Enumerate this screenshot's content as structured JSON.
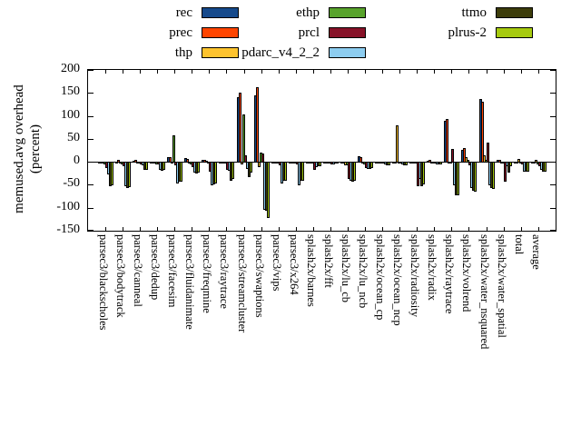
{
  "chart_data": {
    "type": "bar",
    "title": "",
    "ylabel_line1": "memused.avg overhead",
    "ylabel_line2": "(percent)",
    "ylim": [
      -150,
      200
    ],
    "yticks": [
      200,
      150,
      100,
      50,
      0,
      -50,
      -100,
      -150
    ],
    "grid": false,
    "legend_position": "top-center, 3 columns",
    "categories": [
      "parsec3/blackscholes",
      "parsec3/bodytrack",
      "parsec3/canneal",
      "parsec3/dedup",
      "parsec3/facesim",
      "parsec3/fluidanimate",
      "parsec3/freqmine",
      "parsec3/raytrace",
      "parsec3/streamcluster",
      "parsec3/swaptions",
      "parsec3/vips",
      "parsec3/x264",
      "splash2x/barnes",
      "splash2x/fft",
      "splash2x/lu_cb",
      "splash2x/lu_ncb",
      "splash2x/ocean_cp",
      "splash2x/ocean_ncp",
      "splash2x/radiosity",
      "splash2x/radix",
      "splash2x/raytrace",
      "splash2x/volrend",
      "splash2x/water_nsquared",
      "splash2x/water_spatial",
      "total",
      "average"
    ],
    "series": [
      {
        "name": "rec",
        "color": "#164a8c",
        "values": [
          -2,
          -2,
          2,
          -2,
          9,
          8,
          4,
          -2,
          141,
          144,
          -2,
          -2,
          -2,
          -1,
          -2,
          12,
          -1,
          -1,
          -1,
          2,
          88,
          25,
          137,
          3,
          -1,
          -2
        ]
      },
      {
        "name": "prec",
        "color": "#ff4500",
        "values": [
          -2,
          4,
          4,
          -2,
          9,
          5,
          4,
          -2,
          150,
          162,
          -2,
          -2,
          -2,
          -1,
          -2,
          9,
          -1,
          -1,
          -1,
          3,
          93,
          30,
          131,
          4,
          -1,
          -2
        ]
      },
      {
        "name": "thp",
        "color": "#fdc32e",
        "values": [
          -2,
          -2,
          -2,
          -2,
          -2,
          -2,
          2,
          -2,
          -3,
          -10,
          -2,
          -2,
          -2,
          -1,
          -6,
          -2,
          -1,
          80,
          -2,
          -1,
          -2,
          10,
          14,
          -2,
          5,
          4
        ]
      },
      {
        "name": "ethp",
        "color": "#58a32c",
        "values": [
          -3,
          -3,
          -2,
          -3,
          57,
          -3,
          -2,
          -2,
          103,
          20,
          -2,
          -2,
          -2,
          -1,
          -6,
          -3,
          -1,
          -1,
          -2,
          -1,
          -2,
          3,
          3,
          -2,
          -1,
          -3
        ]
      },
      {
        "name": "prcl",
        "color": "#871228",
        "values": [
          -12,
          -8,
          -3,
          -4,
          -5,
          -10,
          -19,
          -16,
          14,
          17,
          -5,
          -3,
          -16,
          -4,
          -36,
          -12,
          -2,
          -2,
          -52,
          -2,
          27,
          -5,
          42,
          -41,
          -3,
          -8
        ]
      },
      {
        "name": "pdarc_v4_2_2",
        "color": "#8dcdf0",
        "values": [
          -26,
          -52,
          -5,
          -15,
          -45,
          -22,
          -49,
          -18,
          -13,
          -102,
          -45,
          -49,
          -9,
          -3,
          -40,
          -13,
          -3,
          -3,
          -36,
          -3,
          -49,
          -55,
          -50,
          -8,
          -19,
          -16
        ]
      },
      {
        "name": "ttmo",
        "color": "#3d3d0b",
        "values": [
          -52,
          -56,
          -16,
          -17,
          -42,
          -23,
          -47,
          -39,
          -32,
          -105,
          -39,
          -40,
          -8,
          -2,
          -42,
          -14,
          -6,
          -5,
          -52,
          -3,
          -72,
          -62,
          -55,
          -22,
          -19,
          -19
        ]
      },
      {
        "name": "plrus-2",
        "color": "#a6ca0f",
        "values": [
          -50,
          -54,
          -16,
          -15,
          -42,
          -22,
          -45,
          -36,
          -22,
          -121,
          -39,
          -40,
          -8,
          -2,
          -40,
          -12,
          -6,
          -5,
          -47,
          -3,
          -72,
          -64,
          -58,
          -7,
          -19,
          -19
        ]
      }
    ],
    "legend_columns": [
      [
        "rec",
        "prec",
        "thp"
      ],
      [
        "ethp",
        "prcl",
        "pdarc_v4_2_2"
      ],
      [
        "ttmo",
        "plrus-2"
      ]
    ]
  }
}
